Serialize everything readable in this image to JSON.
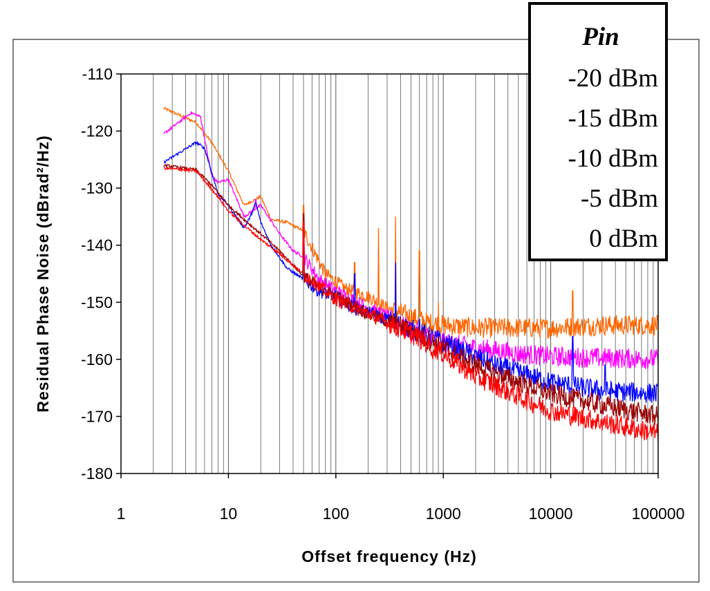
{
  "chart_data": {
    "type": "line",
    "xlabel": "Offset frequency (Hz)",
    "ylabel": "Residual Phase Noise (dBrad²/Hz)",
    "x_scale": "log",
    "xlim": [
      1,
      100000
    ],
    "ylim": [
      -180,
      -110
    ],
    "x_ticks": [
      "1",
      "10",
      "100",
      "1000",
      "10000",
      "100000"
    ],
    "y_ticks": [
      "-110",
      "-120",
      "-130",
      "-140",
      "-150",
      "-160",
      "-170",
      "-180"
    ],
    "grid": "vertical minor and major",
    "legend": {
      "title": "Pin",
      "placement": "top-right",
      "entries": [
        "-20 dBm",
        "-15 dBm",
        "-10 dBm",
        "-5 dBm",
        "0 dBm"
      ]
    },
    "series": [
      {
        "color": "#ff6600",
        "points": [
          [
            2.5,
            -116
          ],
          [
            5,
            -118.5
          ],
          [
            7,
            -122
          ],
          [
            10,
            -127
          ],
          [
            14,
            -133
          ],
          [
            20,
            -131.5
          ],
          [
            25,
            -135.5
          ],
          [
            35,
            -136
          ],
          [
            50,
            -137.5
          ],
          [
            80,
            -145
          ],
          [
            120,
            -147.5
          ],
          [
            200,
            -149
          ],
          [
            300,
            -151
          ],
          [
            500,
            -152.5
          ],
          [
            700,
            -153.5
          ],
          [
            1000,
            -154
          ],
          [
            2000,
            -154.5
          ],
          [
            5000,
            -154.5
          ],
          [
            10000,
            -154.5
          ],
          [
            30000,
            -154
          ],
          [
            100000,
            -154
          ]
        ],
        "spikes": [
          [
            50,
            -133
          ],
          [
            150,
            -143
          ],
          [
            250,
            -137
          ],
          [
            360,
            -135
          ],
          [
            600,
            -141
          ],
          [
            900,
            -150
          ],
          [
            16000,
            -148
          ]
        ]
      },
      {
        "color": "#ff00ff",
        "points": [
          [
            2.5,
            -120.5
          ],
          [
            4.5,
            -116.8
          ],
          [
            5.5,
            -117.5
          ],
          [
            7,
            -128
          ],
          [
            8,
            -129
          ],
          [
            10,
            -128.5
          ],
          [
            14,
            -135
          ],
          [
            20,
            -133
          ],
          [
            30,
            -138
          ],
          [
            40,
            -141
          ],
          [
            50,
            -142
          ],
          [
            70,
            -146
          ],
          [
            100,
            -148
          ],
          [
            200,
            -151
          ],
          [
            300,
            -152.5
          ],
          [
            500,
            -155
          ],
          [
            1000,
            -157
          ],
          [
            2000,
            -158
          ],
          [
            5000,
            -159
          ],
          [
            10000,
            -159.5
          ],
          [
            100000,
            -160
          ]
        ],
        "spikes": [
          [
            50,
            -135
          ],
          [
            18,
            -132
          ],
          [
            1200,
            -156
          ],
          [
            16000,
            -157
          ]
        ]
      },
      {
        "color": "#0000ff",
        "points": [
          [
            2.5,
            -125.5
          ],
          [
            5,
            -122
          ],
          [
            6,
            -123
          ],
          [
            8,
            -131
          ],
          [
            10,
            -133
          ],
          [
            14,
            -137
          ],
          [
            16,
            -135
          ],
          [
            18,
            -132.5
          ],
          [
            20,
            -136
          ],
          [
            25,
            -140
          ],
          [
            35,
            -144
          ],
          [
            50,
            -146
          ],
          [
            70,
            -148
          ],
          [
            100,
            -149
          ],
          [
            150,
            -151
          ],
          [
            300,
            -153
          ],
          [
            1000,
            -157
          ],
          [
            3000,
            -161
          ],
          [
            10000,
            -164
          ],
          [
            30000,
            -165.5
          ],
          [
            100000,
            -166
          ]
        ],
        "spikes": [
          [
            50,
            -135
          ],
          [
            150,
            -145
          ],
          [
            360,
            -143
          ],
          [
            600,
            -153
          ],
          [
            16000,
            -156
          ],
          [
            32000,
            -161
          ]
        ]
      },
      {
        "color": "#990000",
        "points": [
          [
            2.5,
            -126
          ],
          [
            5,
            -126.8
          ],
          [
            7,
            -129.5
          ],
          [
            10,
            -133
          ],
          [
            15,
            -136
          ],
          [
            20,
            -138
          ],
          [
            30,
            -141
          ],
          [
            50,
            -145.5
          ],
          [
            80,
            -148
          ],
          [
            100,
            -149
          ],
          [
            200,
            -152
          ],
          [
            500,
            -155
          ],
          [
            1000,
            -158
          ],
          [
            2000,
            -161
          ],
          [
            5000,
            -164
          ],
          [
            10000,
            -166
          ],
          [
            30000,
            -168
          ],
          [
            100000,
            -170
          ]
        ],
        "spikes": [
          [
            50,
            -134.5
          ]
        ]
      },
      {
        "color": "#ff0000",
        "points": [
          [
            2.5,
            -126.5
          ],
          [
            5,
            -127
          ],
          [
            8,
            -131.5
          ],
          [
            10,
            -134
          ],
          [
            15,
            -137
          ],
          [
            20,
            -139
          ],
          [
            30,
            -141.5
          ],
          [
            50,
            -145
          ],
          [
            80,
            -148
          ],
          [
            100,
            -149.5
          ],
          [
            200,
            -152
          ],
          [
            500,
            -155.5
          ],
          [
            1000,
            -159
          ],
          [
            2000,
            -163
          ],
          [
            5000,
            -166.5
          ],
          [
            10000,
            -169
          ],
          [
            30000,
            -171
          ],
          [
            100000,
            -173
          ]
        ],
        "spikes": [
          [
            50,
            -136
          ],
          [
            600,
            -156
          ],
          [
            800,
            -160
          ]
        ]
      }
    ]
  }
}
